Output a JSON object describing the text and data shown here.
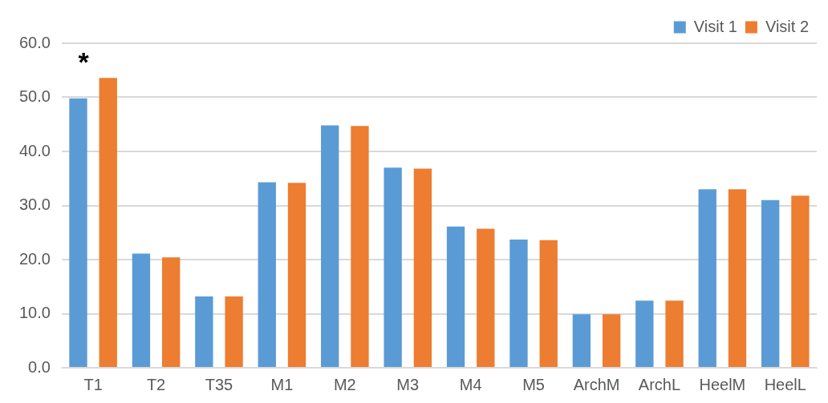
{
  "chart_data": {
    "type": "bar",
    "categories": [
      "T1",
      "T2",
      "T35",
      "M1",
      "M2",
      "M3",
      "M4",
      "M5",
      "ArchM",
      "ArchL",
      "HeelM",
      "HeelL"
    ],
    "series": [
      {
        "name": "Visit 1",
        "color": "#5b9bd5",
        "values": [
          49.8,
          21.1,
          13.2,
          34.3,
          44.8,
          37.0,
          26.1,
          23.7,
          9.9,
          12.4,
          33.0,
          31.0
        ]
      },
      {
        "name": "Visit 2",
        "color": "#ed7d31",
        "values": [
          53.6,
          20.4,
          13.2,
          34.2,
          44.7,
          36.8,
          25.7,
          23.6,
          9.9,
          12.4,
          33.0,
          31.8
        ]
      }
    ],
    "ylim": [
      0,
      60
    ],
    "yticks": [
      {
        "value": 0,
        "label": "0.0"
      },
      {
        "value": 10,
        "label": "10.0"
      },
      {
        "value": 20,
        "label": "20.0"
      },
      {
        "value": 30,
        "label": "30.0"
      },
      {
        "value": 40,
        "label": "40.0"
      },
      {
        "value": 50,
        "label": "50.0"
      },
      {
        "value": 60,
        "label": "60.0"
      }
    ],
    "grid": "y",
    "legend": "top right",
    "annotations": [
      "*"
    ]
  }
}
